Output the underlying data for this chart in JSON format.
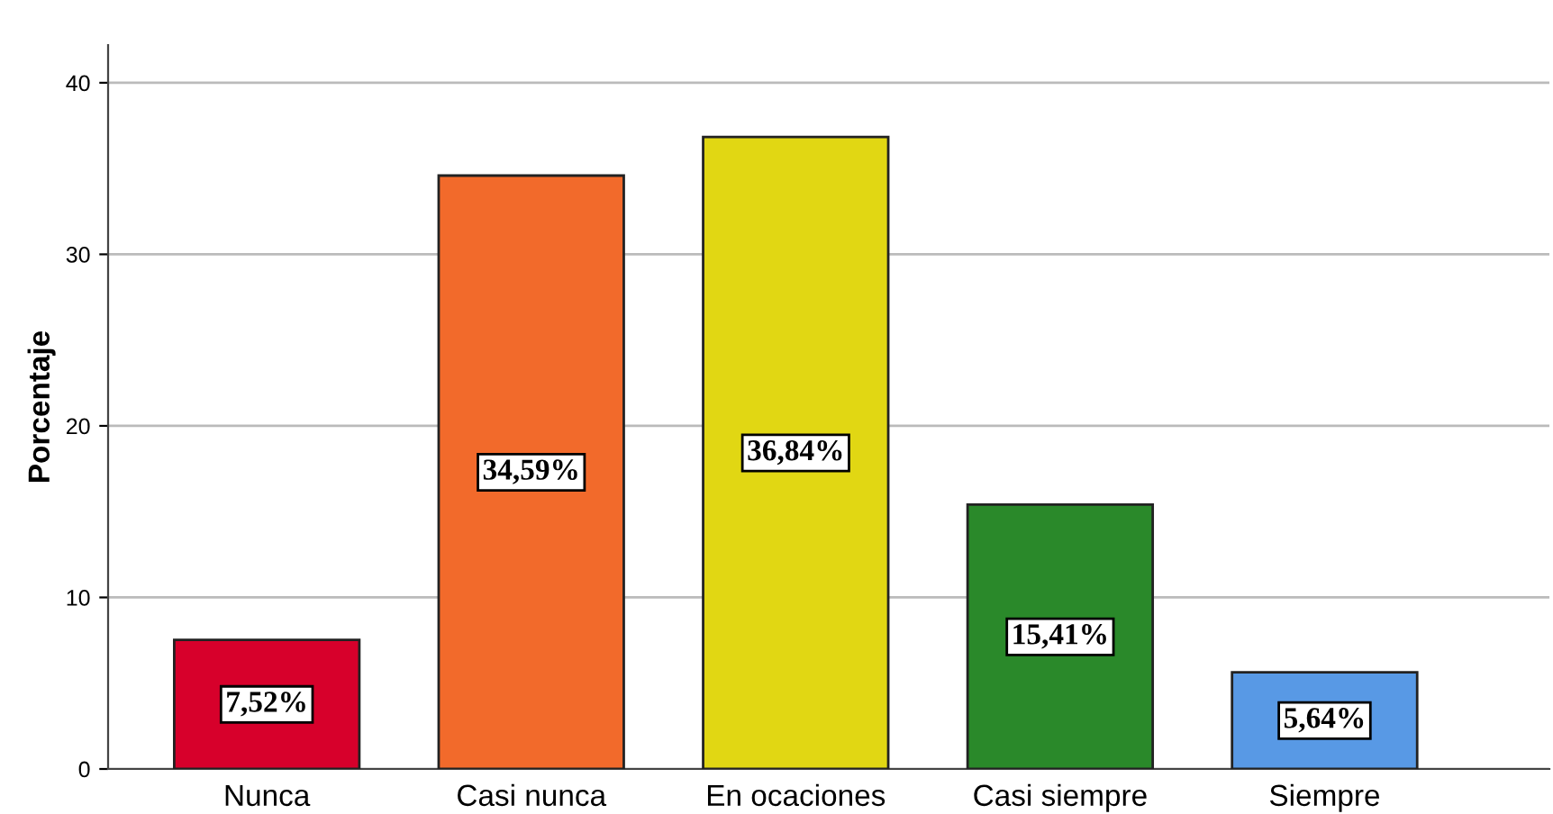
{
  "chart_data": {
    "type": "bar",
    "ylabel": "Porcentaje",
    "categories": [
      "Nunca",
      "Casi nunca",
      "En ocaciones",
      "Casi siempre",
      "Siempre"
    ],
    "values": [
      7.52,
      34.59,
      36.84,
      15.41,
      5.64
    ],
    "colors": [
      "#d7002b",
      "#f26a2b",
      "#e1d713",
      "#2a892a",
      "#5899e5"
    ],
    "value_labels": [
      "7,52%",
      "34,59%",
      "36,84%",
      "15,41%",
      "5,64%"
    ],
    "ylim": [
      0,
      42.2
    ],
    "yticks": [
      0,
      10,
      20,
      30,
      40
    ],
    "grid": "y"
  }
}
